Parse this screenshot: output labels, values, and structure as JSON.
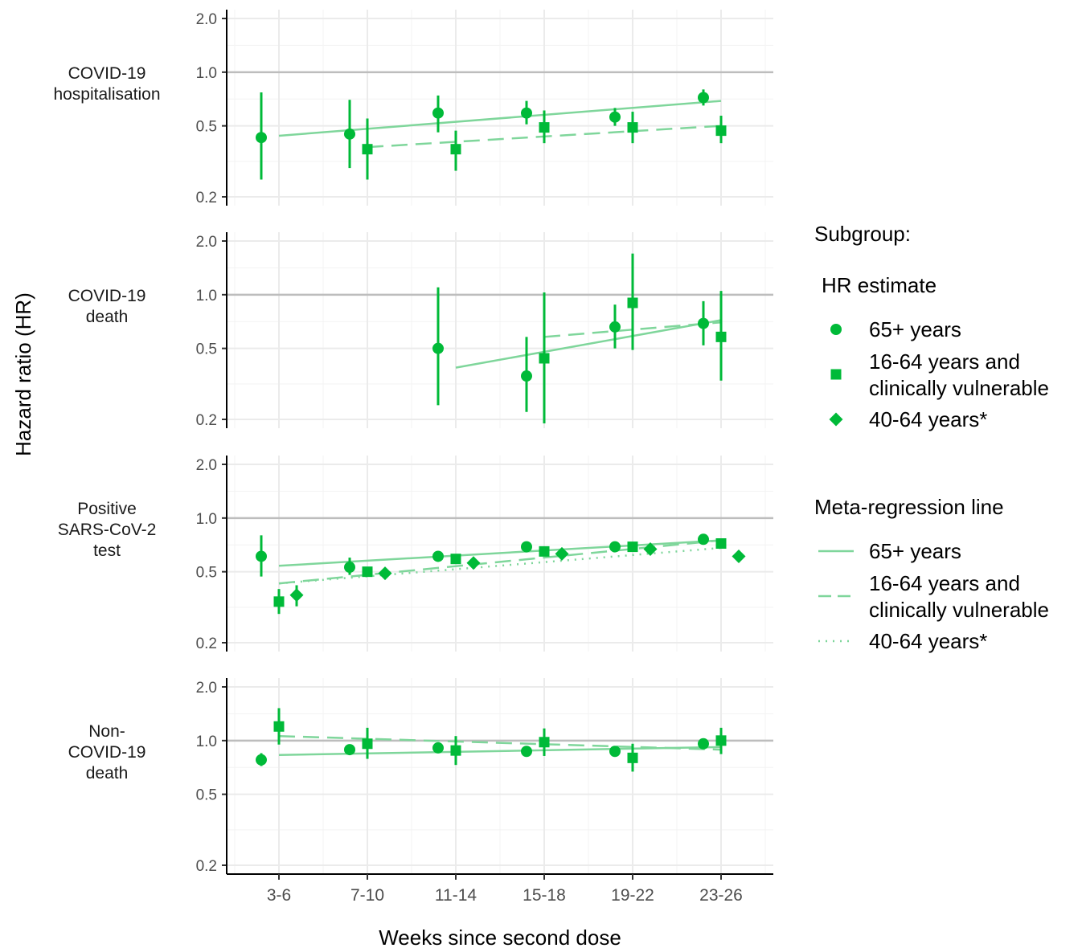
{
  "chart_data": {
    "type": "scatter",
    "xlabel": "Weeks since second dose",
    "ylabel": "Hazard ratio (HR)",
    "y_scale": "log",
    "ylim": [
      0.2,
      2.0
    ],
    "y_ticks": [
      "0.2",
      "0.5",
      "1.0",
      "2.0"
    ],
    "reference_line": 1.0,
    "categories": [
      "3-6",
      "7-10",
      "11-14",
      "15-18",
      "19-22",
      "23-26"
    ],
    "grid": true,
    "legend_position": "right",
    "accent_color": "#00ba38",
    "line_color": "#7fd69b",
    "legend": {
      "title": "Subgroup:",
      "estimate_title": "HR estimate",
      "line_title": "Meta-regression line",
      "entries": [
        {
          "lines": [
            "65+ years"
          ],
          "marker": "circle",
          "linetype": "solid"
        },
        {
          "lines": [
            "16-64 years and",
            "clinically vulnerable"
          ],
          "marker": "square",
          "linetype": "dashed"
        },
        {
          "lines": [
            "40-64 years*"
          ],
          "marker": "diamond",
          "linetype": "dotted"
        }
      ]
    },
    "panels": [
      {
        "label_lines": [
          "COVID-19",
          "hospitalisation"
        ],
        "series": [
          {
            "name": "65+ years",
            "marker": "circle",
            "points": [
              {
                "x": 0,
                "y": 0.43,
                "lo": 0.25,
                "hi": 0.77
              },
              {
                "x": 1,
                "y": 0.45,
                "lo": 0.29,
                "hi": 0.7
              },
              {
                "x": 2,
                "y": 0.59,
                "lo": 0.46,
                "hi": 0.74
              },
              {
                "x": 3,
                "y": 0.59,
                "lo": 0.51,
                "hi": 0.69
              },
              {
                "x": 4,
                "y": 0.56,
                "lo": 0.5,
                "hi": 0.63
              },
              {
                "x": 5,
                "y": 0.72,
                "lo": 0.65,
                "hi": 0.8
              }
            ],
            "trend": {
              "x_start": 0,
              "x_end": 5,
              "y_start": 0.44,
              "y_end": 0.69
            }
          },
          {
            "name": "16-64 years and clinically vulnerable",
            "marker": "square",
            "points": [
              {
                "x": 1,
                "y": 0.37,
                "lo": 0.25,
                "hi": 0.55
              },
              {
                "x": 2,
                "y": 0.37,
                "lo": 0.28,
                "hi": 0.47
              },
              {
                "x": 3,
                "y": 0.49,
                "lo": 0.4,
                "hi": 0.61
              },
              {
                "x": 4,
                "y": 0.49,
                "lo": 0.4,
                "hi": 0.6
              },
              {
                "x": 5,
                "y": 0.47,
                "lo": 0.4,
                "hi": 0.57
              }
            ],
            "trend": {
              "x_start": 1,
              "x_end": 5,
              "y_start": 0.38,
              "y_end": 0.5
            }
          }
        ]
      },
      {
        "label_lines": [
          "COVID-19",
          "death"
        ],
        "series": [
          {
            "name": "65+ years",
            "marker": "circle",
            "points": [
              {
                "x": 2,
                "y": 0.5,
                "lo": 0.24,
                "hi": 1.1
              },
              {
                "x": 3,
                "y": 0.35,
                "lo": 0.22,
                "hi": 0.58
              },
              {
                "x": 4,
                "y": 0.66,
                "lo": 0.5,
                "hi": 0.88
              },
              {
                "x": 5,
                "y": 0.69,
                "lo": 0.52,
                "hi": 0.92
              }
            ],
            "trend": {
              "x_start": 2,
              "x_end": 5,
              "y_start": 0.39,
              "y_end": 0.72
            }
          },
          {
            "name": "16-64 years and clinically vulnerable",
            "marker": "square",
            "points": [
              {
                "x": 3,
                "y": 0.44,
                "lo": 0.19,
                "hi": 1.03
              },
              {
                "x": 4,
                "y": 0.9,
                "lo": 0.49,
                "hi": 1.7
              },
              {
                "x": 5,
                "y": 0.58,
                "lo": 0.33,
                "hi": 1.05
              }
            ],
            "trend": {
              "x_start": 3,
              "x_end": 5,
              "y_start": 0.58,
              "y_end": 0.7
            }
          }
        ]
      },
      {
        "label_lines": [
          "Positive",
          "SARS-CoV-2",
          "test"
        ],
        "series": [
          {
            "name": "65+ years",
            "marker": "circle",
            "points": [
              {
                "x": 0,
                "y": 0.61,
                "lo": 0.47,
                "hi": 0.8
              },
              {
                "x": 1,
                "y": 0.53,
                "lo": 0.48,
                "hi": 0.6
              },
              {
                "x": 2,
                "y": 0.61,
                "lo": 0.59,
                "hi": 0.63
              },
              {
                "x": 3,
                "y": 0.69,
                "lo": 0.67,
                "hi": 0.71
              },
              {
                "x": 4,
                "y": 0.69,
                "lo": 0.67,
                "hi": 0.71
              },
              {
                "x": 5,
                "y": 0.76,
                "lo": 0.74,
                "hi": 0.78
              }
            ],
            "trend": {
              "x_start": 0,
              "x_end": 5,
              "y_start": 0.54,
              "y_end": 0.75
            }
          },
          {
            "name": "16-64 years and clinically vulnerable",
            "marker": "square",
            "points": [
              {
                "x": 0,
                "y": 0.34,
                "lo": 0.29,
                "hi": 0.4
              },
              {
                "x": 1,
                "y": 0.5,
                "lo": 0.48,
                "hi": 0.52
              },
              {
                "x": 2,
                "y": 0.59,
                "lo": 0.57,
                "hi": 0.61
              },
              {
                "x": 3,
                "y": 0.65,
                "lo": 0.63,
                "hi": 0.67
              },
              {
                "x": 4,
                "y": 0.69,
                "lo": 0.67,
                "hi": 0.71
              },
              {
                "x": 5,
                "y": 0.72,
                "lo": 0.7,
                "hi": 0.74
              }
            ],
            "trend": {
              "x_start": 0,
              "x_end": 5,
              "y_start": 0.43,
              "y_end": 0.75
            }
          },
          {
            "name": "40-64 years*",
            "marker": "diamond",
            "points": [
              {
                "x": 0.2,
                "y": 0.37,
                "lo": 0.32,
                "hi": 0.42
              },
              {
                "x": 1.2,
                "y": 0.49,
                "lo": 0.46,
                "hi": 0.52
              },
              {
                "x": 2.2,
                "y": 0.56,
                "lo": 0.54,
                "hi": 0.58
              },
              {
                "x": 3.2,
                "y": 0.63,
                "lo": 0.61,
                "hi": 0.65
              },
              {
                "x": 4.2,
                "y": 0.67,
                "lo": 0.65,
                "hi": 0.69
              },
              {
                "x": 5.2,
                "y": 0.61,
                "lo": 0.57,
                "hi": 0.65
              }
            ],
            "trend": {
              "x_start": 0,
              "x_end": 5,
              "y_start": 0.43,
              "y_end": 0.68
            }
          }
        ]
      },
      {
        "label_lines": [
          "Non-",
          "COVID-19",
          "death"
        ],
        "series": [
          {
            "name": "65+ years",
            "marker": "circle",
            "points": [
              {
                "x": 0,
                "y": 0.78,
                "lo": 0.72,
                "hi": 0.85
              },
              {
                "x": 1,
                "y": 0.89,
                "lo": 0.84,
                "hi": 0.95
              },
              {
                "x": 2,
                "y": 0.91,
                "lo": 0.87,
                "hi": 0.95
              },
              {
                "x": 3,
                "y": 0.87,
                "lo": 0.84,
                "hi": 0.9
              },
              {
                "x": 4,
                "y": 0.87,
                "lo": 0.84,
                "hi": 0.91
              },
              {
                "x": 5,
                "y": 0.96,
                "lo": 0.92,
                "hi": 1.0
              }
            ],
            "trend": {
              "x_start": 0,
              "x_end": 5,
              "y_start": 0.83,
              "y_end": 0.92
            }
          },
          {
            "name": "16-64 years and clinically vulnerable",
            "marker": "square",
            "points": [
              {
                "x": 0,
                "y": 1.2,
                "lo": 0.95,
                "hi": 1.52
              },
              {
                "x": 1,
                "y": 0.96,
                "lo": 0.79,
                "hi": 1.18
              },
              {
                "x": 2,
                "y": 0.88,
                "lo": 0.73,
                "hi": 1.06
              },
              {
                "x": 3,
                "y": 0.98,
                "lo": 0.82,
                "hi": 1.17
              },
              {
                "x": 4,
                "y": 0.8,
                "lo": 0.67,
                "hi": 0.96
              },
              {
                "x": 5,
                "y": 1.0,
                "lo": 0.84,
                "hi": 1.18
              }
            ],
            "trend": {
              "x_start": 0,
              "x_end": 5,
              "y_start": 1.06,
              "y_end": 0.89
            }
          }
        ]
      }
    ]
  }
}
